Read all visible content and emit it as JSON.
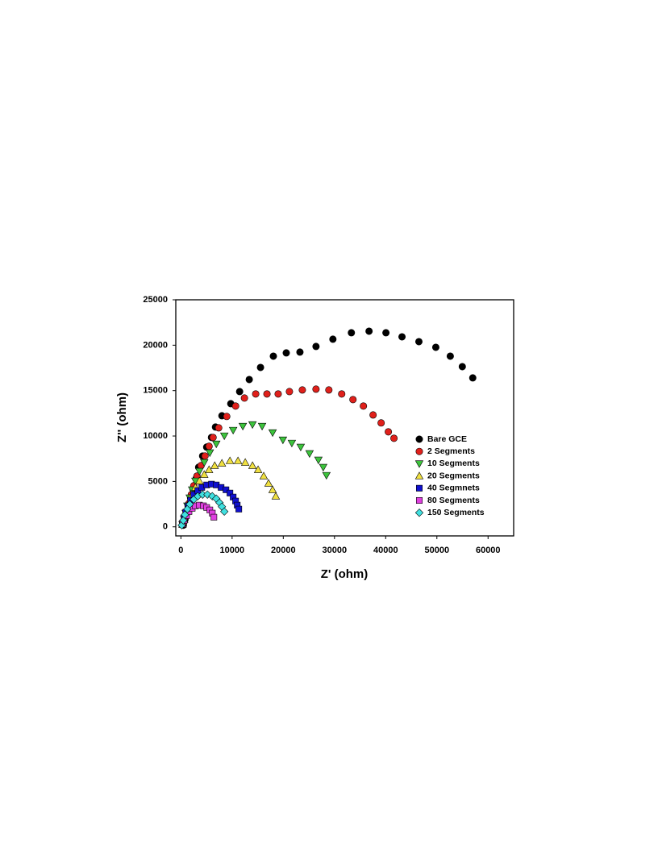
{
  "chart_data": {
    "type": "scatter",
    "xlabel": "Z' (ohm)",
    "ylabel": "Z'' (ohm)",
    "xlim": [
      -1000,
      65000
    ],
    "ylim": [
      -1000,
      25000
    ],
    "xticks": [
      0,
      10000,
      20000,
      30000,
      40000,
      50000,
      60000
    ],
    "yticks": [
      0,
      5000,
      10000,
      15000,
      20000,
      25000
    ],
    "grid": false,
    "legend": "right",
    "series": [
      {
        "name": "Bare GCE",
        "color": "#000000",
        "marker": "circle",
        "x": [
          470,
          790,
          1100,
          1410,
          1890,
          2360,
          2980,
          3460,
          4240,
          5030,
          5970,
          6750,
          8010,
          9740,
          11470,
          13350,
          15550,
          18060,
          20580,
          23250,
          26390,
          29690,
          33300,
          36750,
          40050,
          43190,
          46490,
          49790,
          52620,
          54970,
          57010
        ],
        "values": [
          180,
          800,
          1420,
          2310,
          3190,
          4170,
          5320,
          6560,
          7800,
          8780,
          9840,
          10990,
          12230,
          13560,
          14890,
          16220,
          17550,
          18790,
          19150,
          19240,
          19860,
          20660,
          21370,
          21540,
          21370,
          20920,
          20390,
          19770,
          18790,
          17640,
          16400
        ]
      },
      {
        "name": "2 Segments",
        "color": "#e0201b",
        "marker": "circle",
        "x": [
          470,
          790,
          1100,
          1570,
          2040,
          2510,
          3140,
          3930,
          4710,
          5500,
          6280,
          7380,
          8950,
          10680,
          12410,
          14610,
          16810,
          19000,
          21200,
          23720,
          26390,
          28900,
          31410,
          33610,
          35650,
          37540,
          39110,
          40520,
          41620
        ],
        "values": [
          360,
          980,
          1680,
          2570,
          3550,
          4520,
          5590,
          6740,
          7800,
          8870,
          9840,
          10900,
          12150,
          13300,
          14180,
          14630,
          14630,
          14630,
          14890,
          15070,
          15160,
          15070,
          14630,
          14010,
          13300,
          12320,
          11440,
          10460,
          9750
        ]
      },
      {
        "name": "10 Segments",
        "color": "#3cc43c",
        "marker": "triangle-down",
        "x": [
          310,
          630,
          940,
          1260,
          1730,
          2200,
          2830,
          3610,
          4560,
          5650,
          6910,
          8480,
          10210,
          12090,
          13980,
          15860,
          17910,
          19930,
          21670,
          23400,
          25130,
          26860,
          27800,
          28430
        ],
        "values": [
          270,
          890,
          1510,
          2310,
          3190,
          4080,
          5050,
          6120,
          7090,
          8160,
          9130,
          10020,
          10640,
          11080,
          11260,
          11080,
          10370,
          9570,
          9220,
          8780,
          8070,
          7360,
          6560,
          5670
        ]
      },
      {
        "name": "20 Segments",
        "color": "#f0e040",
        "marker": "triangle-up",
        "x": [
          310,
          630,
          940,
          1260,
          1730,
          2200,
          2830,
          3610,
          4560,
          5500,
          6600,
          8010,
          9580,
          11150,
          12570,
          13980,
          15080,
          16180,
          17120,
          17910,
          18530
        ],
        "values": [
          270,
          800,
          1420,
          2040,
          2750,
          3550,
          4340,
          5050,
          5760,
          6290,
          6740,
          7000,
          7270,
          7270,
          7090,
          6740,
          6290,
          5590,
          4790,
          4080,
          3370
        ]
      },
      {
        "name": "40 Segmnets",
        "color": "#1010d0",
        "marker": "square",
        "x": [
          310,
          630,
          940,
          1410,
          1890,
          2510,
          3300,
          4080,
          5030,
          5970,
          6910,
          7850,
          8800,
          9580,
          10210,
          10680,
          11000,
          11310
        ],
        "values": [
          360,
          980,
          1600,
          2310,
          2930,
          3550,
          3990,
          4340,
          4610,
          4700,
          4610,
          4340,
          4080,
          3720,
          3280,
          2840,
          2390,
          1950
        ]
      },
      {
        "name": "80 Segments",
        "color": "#e040e0",
        "marker": "square",
        "x": [
          310,
          630,
          1100,
          1570,
          2200,
          2830,
          3610,
          4400,
          5030,
          5650,
          6130,
          6440
        ],
        "values": [
          270,
          710,
          1240,
          1680,
          2040,
          2310,
          2390,
          2310,
          2130,
          1860,
          1510,
          1060
        ]
      },
      {
        "name": "150 Segments",
        "color": "#40e0e0",
        "marker": "diamond",
        "x": [
          160,
          470,
          790,
          1260,
          1730,
          2510,
          3300,
          4240,
          5180,
          6130,
          6910,
          7540,
          8010,
          8480
        ],
        "values": [
          180,
          710,
          1330,
          1950,
          2480,
          3010,
          3370,
          3550,
          3550,
          3370,
          3100,
          2660,
          2220,
          1680
        ]
      }
    ]
  }
}
